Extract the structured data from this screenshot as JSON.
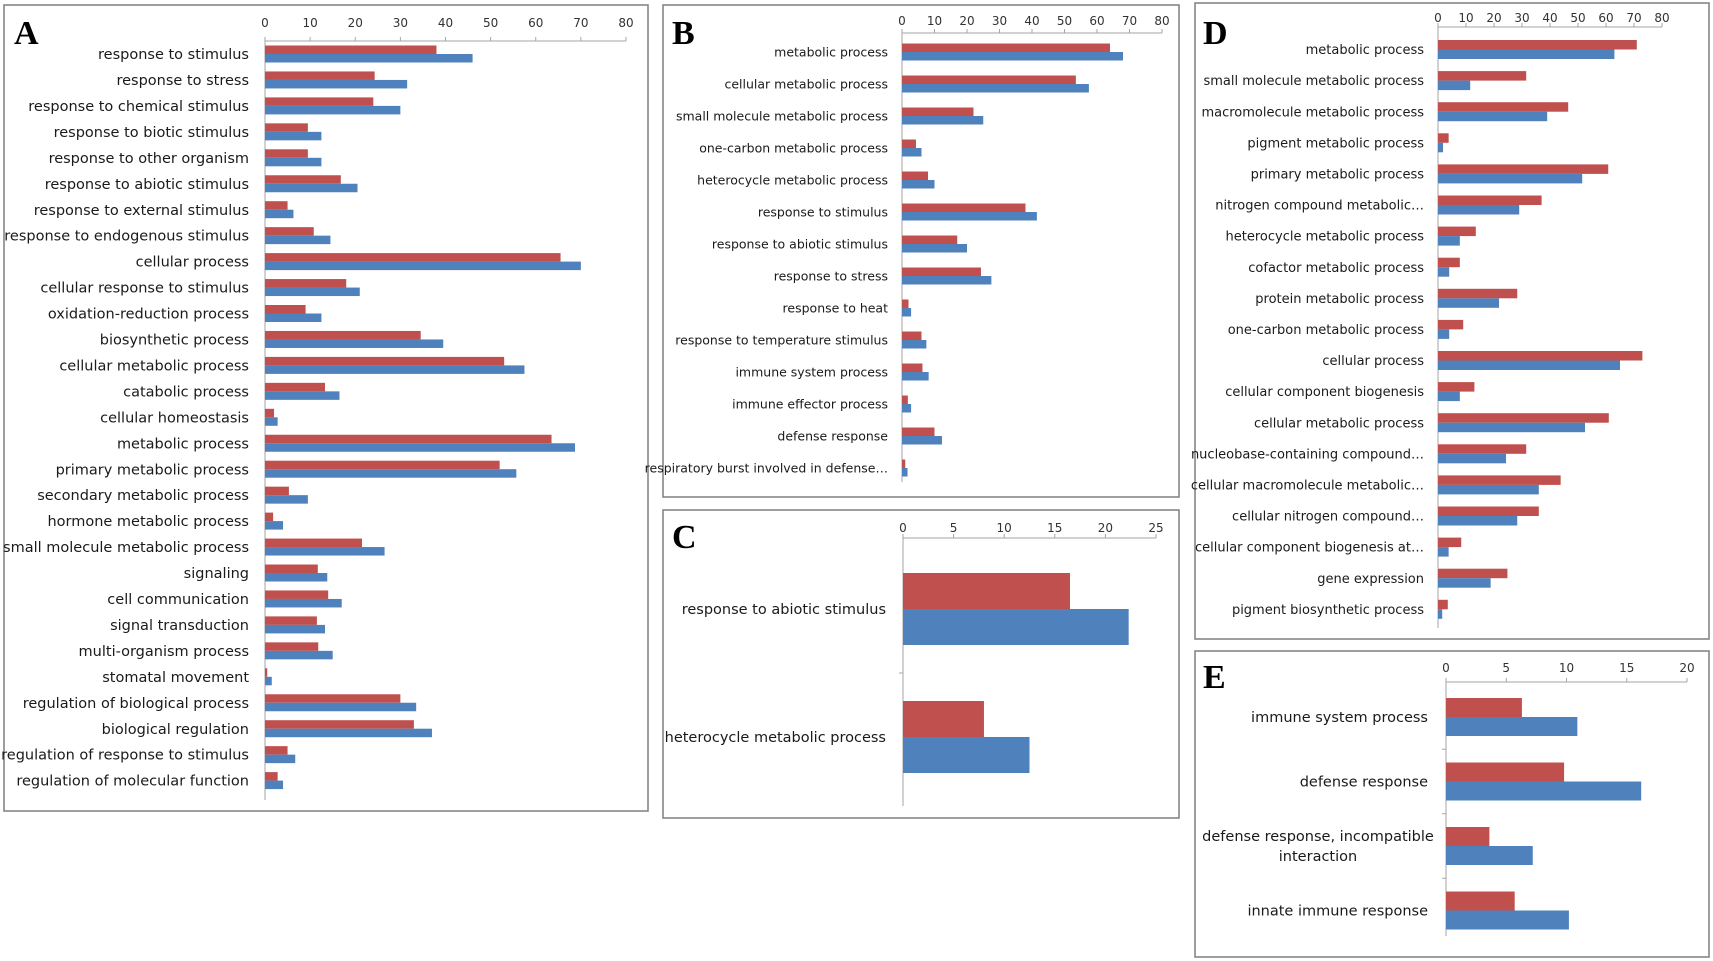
{
  "colors": {
    "series_a": "#c0504d",
    "series_b": "#4f81bd",
    "frame": "#7f7f7f",
    "axis": "#a6a6a6"
  },
  "chart_data": [
    {
      "panel": "A",
      "type": "bar",
      "orientation": "horizontal",
      "xlim": [
        0,
        80
      ],
      "ticks": [
        0,
        10,
        20,
        30,
        40,
        50,
        60,
        70,
        80
      ],
      "categories": [
        "response to stimulus",
        "response to stress",
        "response to chemical stimulus",
        "response to biotic stimulus",
        "response to other organism",
        "response to abiotic stimulus",
        "response to external stimulus",
        "response to endogenous stimulus",
        "cellular process",
        "cellular response to stimulus",
        "oxidation-reduction process",
        "biosynthetic process",
        "cellular metabolic process",
        "catabolic process",
        "cellular homeostasis",
        "metabolic process",
        "primary metabolic process",
        "secondary metabolic process",
        "hormone metabolic process",
        "small molecule metabolic process",
        "signaling",
        "cell communication",
        "signal transduction",
        "multi-organism process",
        "stomatal movement",
        "regulation of biological process",
        "biological regulation",
        "regulation of response to stimulus",
        "regulation of molecular function"
      ],
      "series": [
        {
          "name": "red",
          "values": [
            38,
            24.3,
            24,
            9.5,
            9.5,
            16.8,
            5,
            10.8,
            65.5,
            18,
            9,
            34.5,
            53,
            13.3,
            2,
            63.5,
            52,
            5.3,
            1.8,
            21.5,
            11.7,
            14,
            11.5,
            11.8,
            0.5,
            30,
            33,
            5,
            2.8
          ]
        },
        {
          "name": "blue",
          "values": [
            46,
            31.5,
            30,
            12.5,
            12.5,
            20.5,
            6.3,
            14.5,
            70,
            21,
            12.5,
            39.5,
            57.5,
            16.5,
            2.8,
            68.7,
            55.7,
            9.5,
            4,
            26.5,
            13.8,
            17,
            13.3,
            15,
            1.5,
            33.5,
            37,
            6.7,
            4
          ]
        }
      ]
    },
    {
      "panel": "B",
      "type": "bar",
      "orientation": "horizontal",
      "xlim": [
        0,
        80
      ],
      "ticks": [
        0,
        10,
        20,
        30,
        40,
        50,
        60,
        70,
        80
      ],
      "categories": [
        "metabolic process",
        "cellular metabolic process",
        "small molecule metabolic process",
        "one-carbon metabolic process",
        "heterocycle metabolic process",
        "response to stimulus",
        "response to abiotic stimulus",
        "response to stress",
        "response to heat",
        "response to temperature stimulus",
        "immune system process",
        "immune effector process",
        "defense response",
        "respiratory burst involved in defense…"
      ],
      "series": [
        {
          "name": "red",
          "values": [
            64,
            53.5,
            22,
            4.3,
            8,
            38,
            17,
            24.3,
            2,
            6,
            6.3,
            1.8,
            10,
            1
          ]
        },
        {
          "name": "blue",
          "values": [
            68,
            57.5,
            25,
            6,
            10,
            41.5,
            20,
            27.5,
            2.8,
            7.5,
            8.2,
            2.8,
            12.3,
            1.7
          ]
        }
      ]
    },
    {
      "panel": "C",
      "type": "bar",
      "orientation": "horizontal",
      "xlim": [
        0,
        25
      ],
      "ticks": [
        0,
        5,
        10,
        15,
        20,
        25
      ],
      "categories": [
        "response to abiotic stimulus",
        "heterocycle metabolic process"
      ],
      "series": [
        {
          "name": "red",
          "values": [
            16.5,
            8
          ]
        },
        {
          "name": "blue",
          "values": [
            22.3,
            12.5
          ]
        }
      ]
    },
    {
      "panel": "D",
      "type": "bar",
      "orientation": "horizontal",
      "xlim": [
        0,
        80
      ],
      "ticks": [
        0,
        10,
        20,
        30,
        40,
        50,
        60,
        70,
        80
      ],
      "categories": [
        "metabolic process",
        "small molecule metabolic process",
        "macromolecule metabolic process",
        "pigment metabolic process",
        "primary metabolic process",
        "nitrogen compound metabolic…",
        "heterocycle metabolic process",
        "cofactor metabolic process",
        "protein metabolic process",
        "one-carbon metabolic process",
        "cellular process",
        "cellular component biogenesis",
        "cellular metabolic process",
        "nucleobase-containing compound…",
        "cellular macromolecule metabolic…",
        "cellular nitrogen compound…",
        "cellular component biogenesis at…",
        "gene expression",
        "pigment biosynthetic process"
      ],
      "series": [
        {
          "name": "red",
          "values": [
            71,
            31.5,
            46.5,
            3.8,
            60.8,
            37,
            13.5,
            7.8,
            28.3,
            9,
            73,
            13,
            61,
            31.5,
            43.8,
            36,
            8.3,
            24.8,
            3.5
          ]
        },
        {
          "name": "blue",
          "values": [
            63,
            11.5,
            39,
            1.8,
            51.5,
            29,
            7.8,
            4,
            21.8,
            4,
            65,
            7.8,
            52.5,
            24.3,
            36,
            28.3,
            3.8,
            18.8,
            1.5
          ]
        }
      ]
    },
    {
      "panel": "E",
      "type": "bar",
      "orientation": "horizontal",
      "xlim": [
        0,
        20
      ],
      "ticks": [
        0,
        5,
        10,
        15,
        20
      ],
      "categories": [
        "immune system process",
        "defense response",
        "defense response, incompatible interaction",
        "innate immune response"
      ],
      "category_lines": [
        [
          "immune system process"
        ],
        [
          "defense response"
        ],
        [
          "defense response, incompatible",
          "interaction"
        ],
        [
          "innate immune response"
        ]
      ],
      "series": [
        {
          "name": "red",
          "values": [
            6.3,
            9.8,
            3.6,
            5.7
          ]
        },
        {
          "name": "blue",
          "values": [
            10.9,
            16.2,
            7.2,
            10.2
          ]
        }
      ]
    }
  ]
}
